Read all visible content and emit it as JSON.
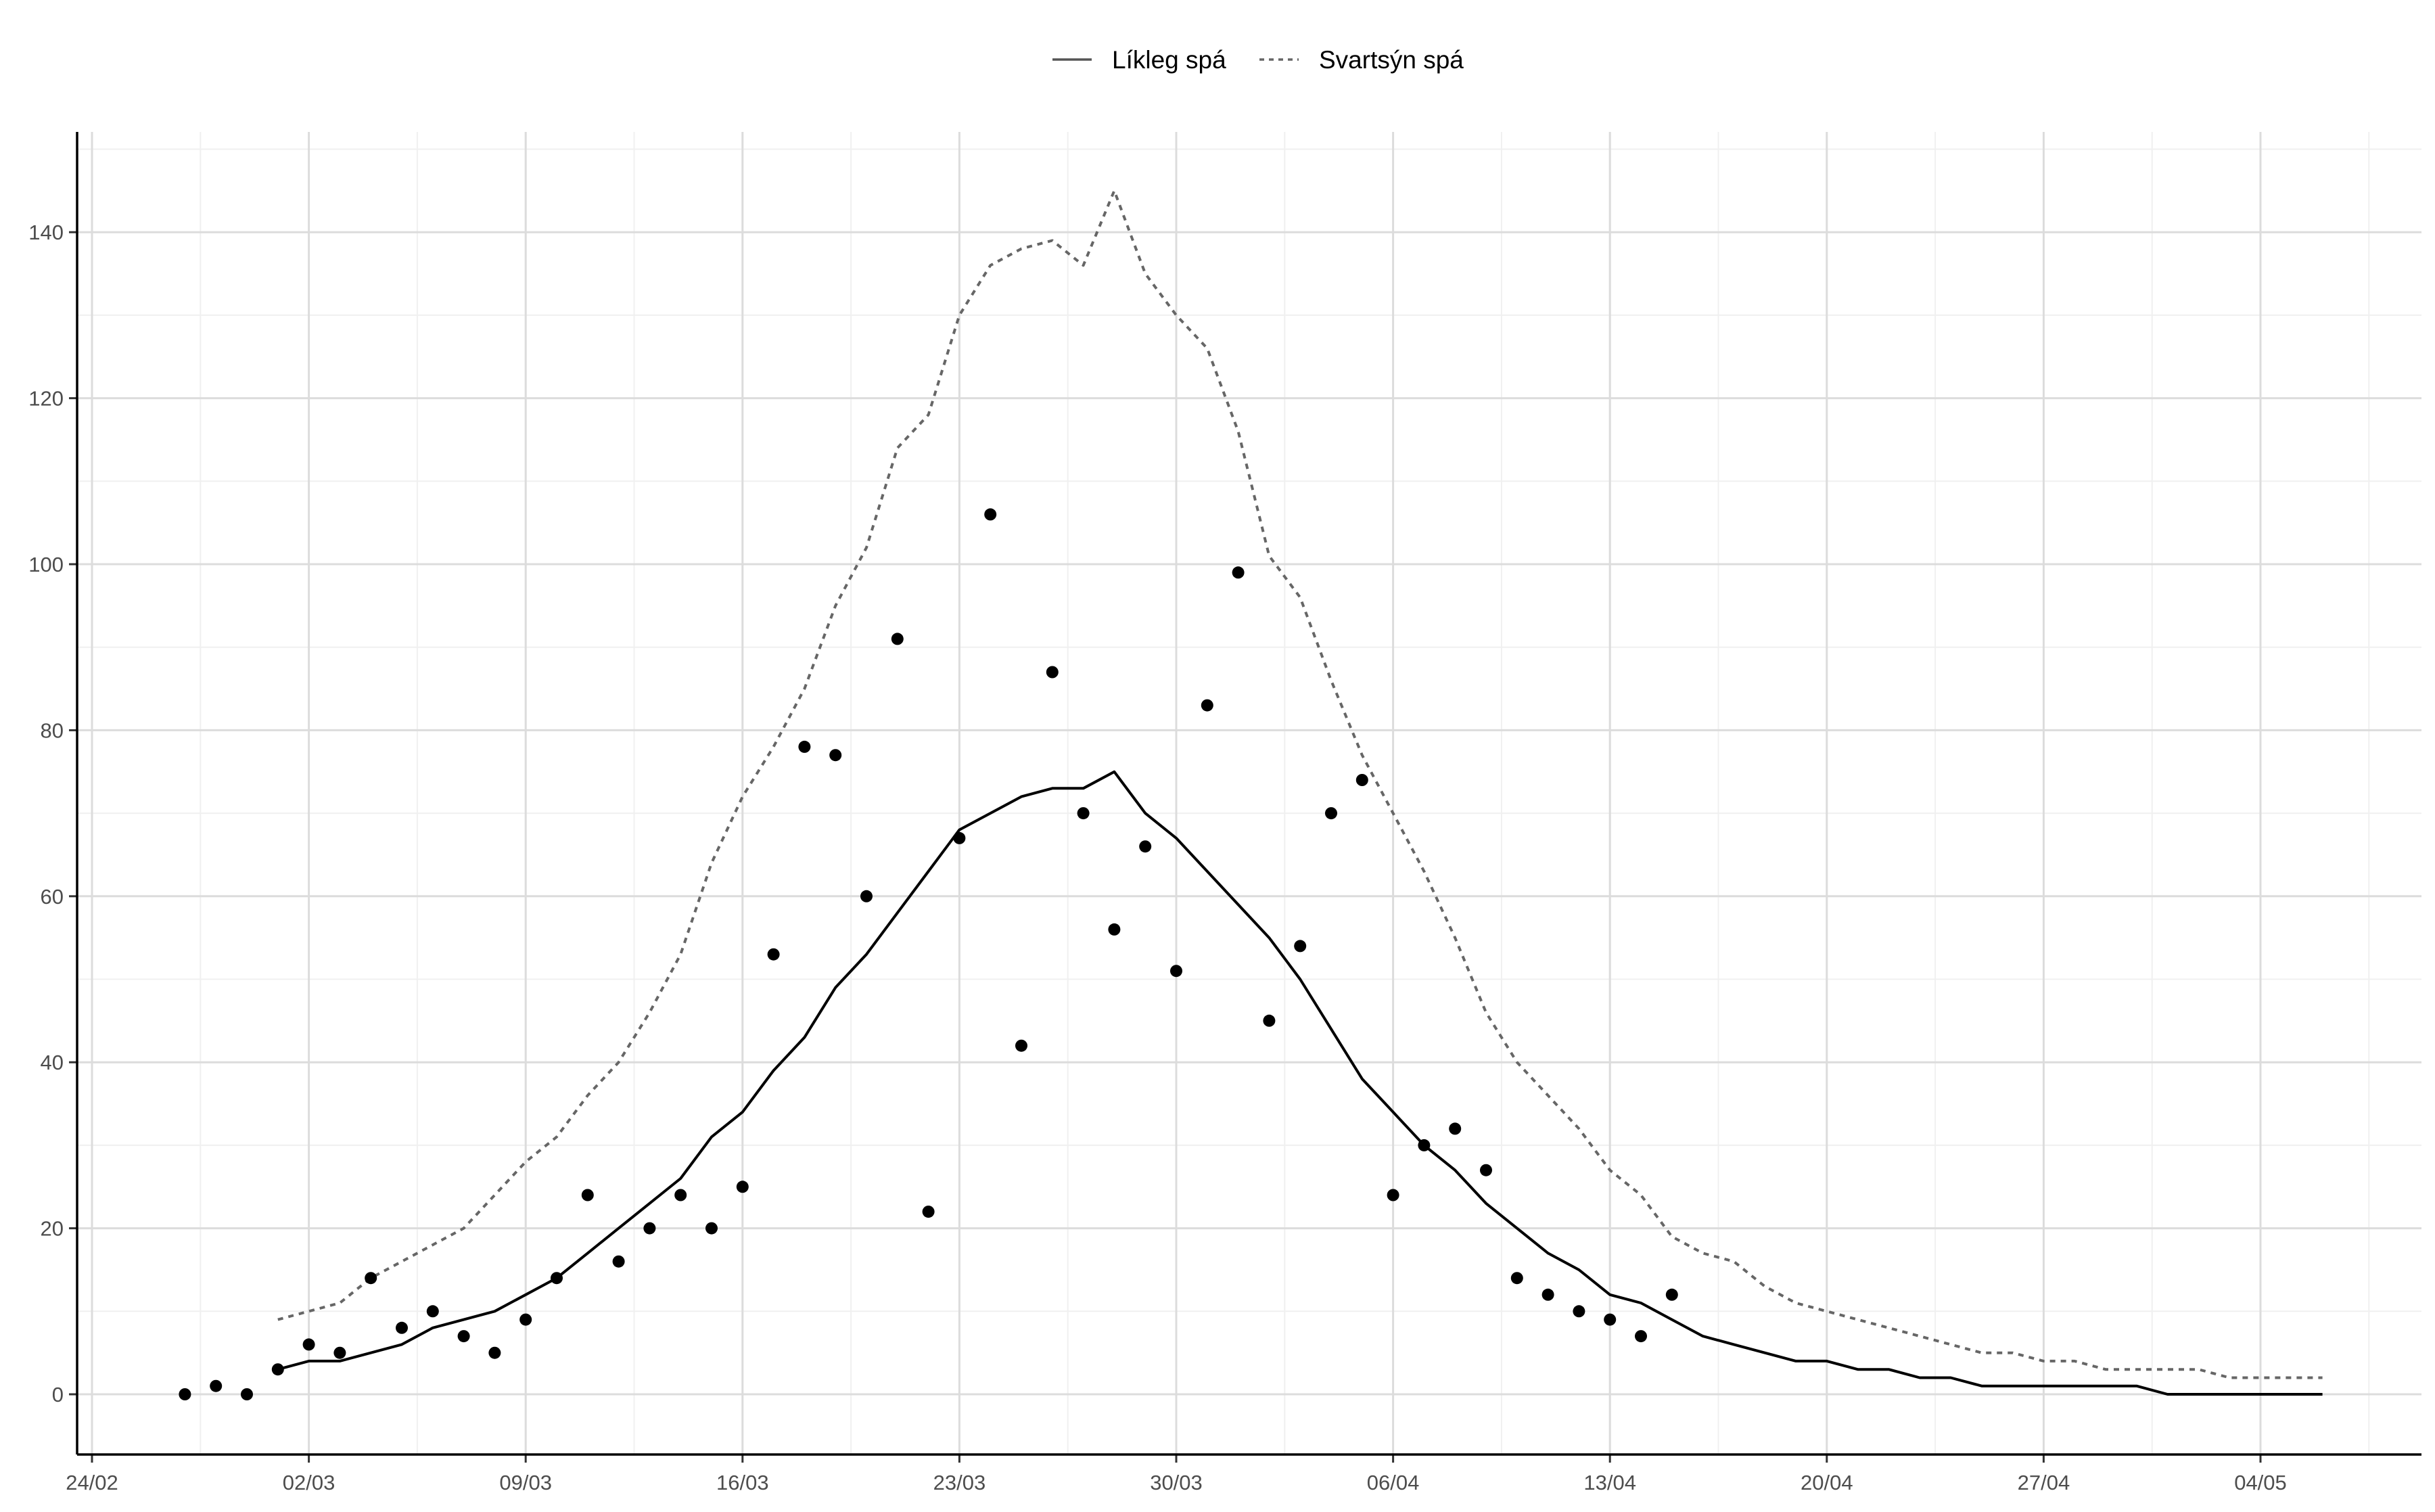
{
  "chart_data": {
    "type": "line",
    "title": "",
    "xlabel": "",
    "ylabel": "",
    "legend_position": "top",
    "grid": true,
    "x_start_date": "2020-02-24",
    "x_ticks": [
      "24/02",
      "02/03",
      "09/03",
      "16/03",
      "23/03",
      "30/03",
      "06/04",
      "13/04",
      "20/04",
      "27/04",
      "04/05"
    ],
    "ylim": [
      -7,
      152
    ],
    "y_ticks": [
      0,
      20,
      40,
      60,
      80,
      100,
      120,
      140
    ],
    "series": [
      {
        "name": "Líkleg spá",
        "style": "solid",
        "color": "#000000",
        "start": "01/03",
        "values": [
          3,
          4,
          4,
          5,
          6,
          8,
          9,
          10,
          12,
          14,
          17,
          20,
          23,
          26,
          31,
          34,
          39,
          43,
          49,
          53,
          58,
          63,
          68,
          70,
          72,
          73,
          73,
          75,
          70,
          67,
          63,
          59,
          55,
          50,
          44,
          38,
          34,
          30,
          27,
          23,
          20,
          17,
          15,
          12,
          11,
          9,
          7,
          6,
          5,
          4,
          4,
          3,
          3,
          2,
          2,
          1,
          1,
          1,
          1,
          1,
          1,
          0,
          0,
          0,
          0,
          0,
          0
        ]
      },
      {
        "name": "Svartsýn spá",
        "style": "dashed",
        "color": "#666666",
        "start": "01/03",
        "values": [
          9,
          10,
          11,
          14,
          16,
          18,
          20,
          24,
          28,
          31,
          36,
          40,
          46,
          53,
          64,
          72,
          78,
          85,
          95,
          102,
          114,
          118,
          130,
          136,
          138,
          139,
          136,
          145,
          135,
          130,
          126,
          116,
          101,
          96,
          86,
          77,
          70,
          63,
          55,
          46,
          40,
          36,
          32,
          27,
          24,
          19,
          17,
          16,
          13,
          11,
          10,
          9,
          8,
          7,
          6,
          5,
          5,
          4,
          4,
          3,
          3,
          3,
          3,
          2,
          2,
          2,
          2
        ]
      },
      {
        "name": "",
        "style": "points",
        "color": "#000000",
        "start": "27/02",
        "values": [
          0,
          1,
          0,
          3,
          6,
          5,
          14,
          8,
          10,
          7,
          5,
          9,
          14,
          24,
          16,
          20,
          24,
          20,
          25,
          53,
          78,
          77,
          60,
          91,
          22,
          67,
          106,
          42,
          87,
          70,
          56,
          66,
          51,
          83,
          99,
          45,
          54,
          70,
          74,
          24,
          30,
          32,
          27,
          14,
          12,
          10,
          9,
          7,
          12
        ]
      }
    ]
  }
}
